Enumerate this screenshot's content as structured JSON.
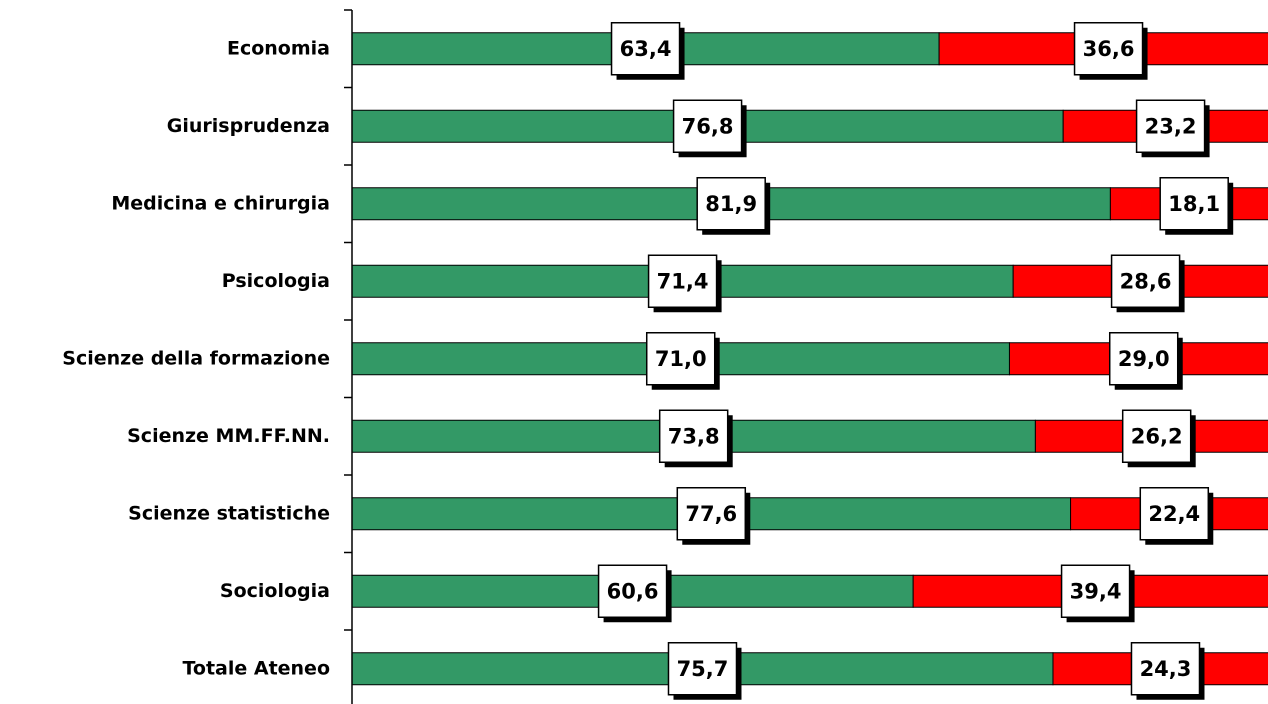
{
  "chart_data": {
    "type": "bar",
    "orientation": "horizontal",
    "stacked": "percent",
    "categories": [
      "Economia",
      "Giurisprudenza",
      "Medicina e chirurgia",
      "Psicologia",
      "Scienze della formazione",
      "Scienze MM.FF.NN.",
      "Scienze statistiche",
      "Sociologia",
      "Totale Ateneo"
    ],
    "series": [
      {
        "color": "#339966",
        "values": [
          63.4,
          76.8,
          81.9,
          71.4,
          71.0,
          73.8,
          77.6,
          60.6,
          75.7
        ],
        "value_labels": [
          "63,4",
          "76,8",
          "81,9",
          "71,4",
          "71,0",
          "73,8",
          "77,6",
          "60,6",
          "75,7"
        ]
      },
      {
        "color": "#ff0000",
        "values": [
          36.6,
          23.2,
          18.1,
          28.6,
          29.0,
          26.2,
          22.4,
          39.4,
          24.3
        ],
        "value_labels": [
          "36,6",
          "23,2",
          "18,1",
          "28,6",
          "29,0",
          "26,2",
          "22,4",
          "39,4",
          "24,3"
        ]
      }
    ],
    "xlim": [
      0,
      100
    ]
  }
}
